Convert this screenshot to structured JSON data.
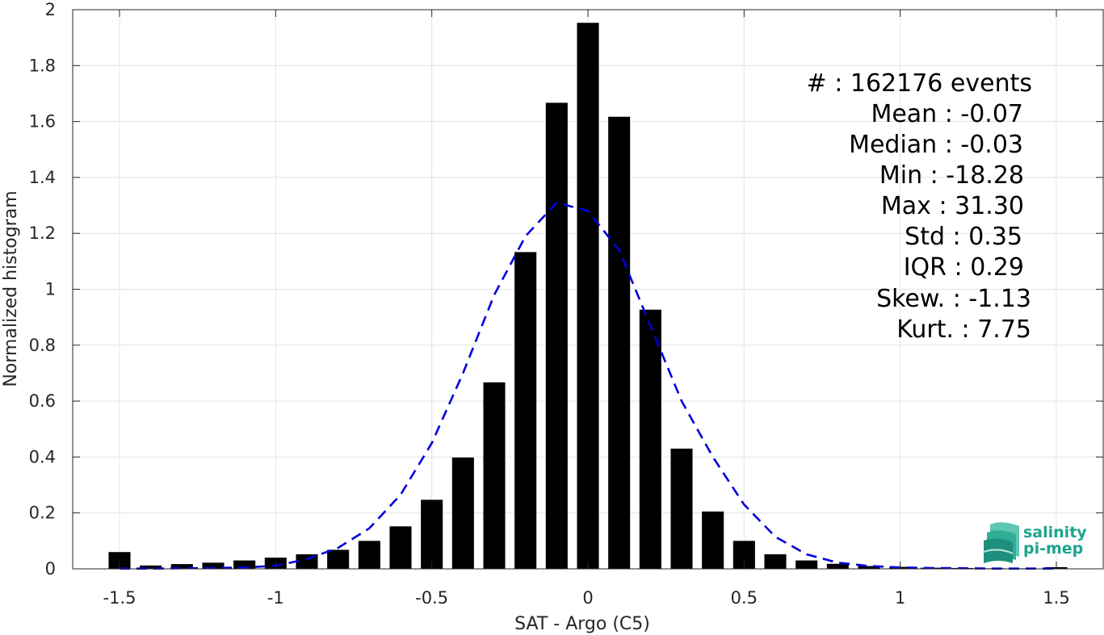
{
  "chart_data": {
    "type": "bar",
    "xlabel": "SAT - Argo (C5)",
    "ylabel": "Normalized histogram",
    "xlim": [
      -1.65,
      1.65
    ],
    "ylim": [
      0,
      2
    ],
    "xticks": [
      -1.5,
      -1,
      -0.5,
      0,
      0.5,
      1,
      1.5
    ],
    "xtick_labels": [
      "-1.5",
      "-1",
      "-0.5",
      "0",
      "0.5",
      "1",
      "1.5"
    ],
    "yticks": [
      0,
      0.2,
      0.4,
      0.6,
      0.8,
      1,
      1.2,
      1.4,
      1.6,
      1.8,
      2
    ],
    "ytick_labels": [
      "0",
      "0.2",
      "0.4",
      "0.6",
      "0.8",
      "1",
      "1.2",
      "1.4",
      "1.6",
      "1.8",
      "2"
    ],
    "grid": true,
    "bar_width": 0.07,
    "bars": {
      "x": [
        -1.5,
        -1.4,
        -1.3,
        -1.2,
        -1.1,
        -1.0,
        -0.9,
        -0.8,
        -0.7,
        -0.6,
        -0.5,
        -0.4,
        -0.3,
        -0.2,
        -0.1,
        0.0,
        0.1,
        0.2,
        0.3,
        0.4,
        0.5,
        0.6,
        0.7,
        0.8,
        0.9,
        1.0,
        1.1,
        1.2,
        1.3,
        1.4,
        1.5
      ],
      "values": [
        0.06,
        0.012,
        0.017,
        0.022,
        0.03,
        0.04,
        0.052,
        0.068,
        0.1,
        0.152,
        0.247,
        0.398,
        0.667,
        1.133,
        1.667,
        1.953,
        1.617,
        0.927,
        0.43,
        0.205,
        0.1,
        0.052,
        0.03,
        0.018,
        0.01,
        0.007,
        0.004,
        0.003,
        0.002,
        0.002,
        0.006
      ],
      "color": "#000000"
    },
    "fit_curve": {
      "style": "dashed",
      "color": "#0000dd",
      "x": [
        -1.5,
        -1.4,
        -1.3,
        -1.2,
        -1.1,
        -1.0,
        -0.9,
        -0.8,
        -0.7,
        -0.6,
        -0.5,
        -0.4,
        -0.3,
        -0.2,
        -0.1,
        0.0,
        0.1,
        0.2,
        0.3,
        0.4,
        0.5,
        0.6,
        0.7,
        0.8,
        0.9,
        1.0,
        1.1,
        1.2,
        1.3,
        1.4,
        1.5
      ],
      "y": [
        0.001,
        0.001,
        0.002,
        0.003,
        0.005,
        0.011,
        0.035,
        0.075,
        0.145,
        0.265,
        0.45,
        0.7,
        0.98,
        1.19,
        1.31,
        1.28,
        1.14,
        0.87,
        0.6,
        0.4,
        0.23,
        0.115,
        0.052,
        0.022,
        0.01,
        0.005,
        0.003,
        0.002,
        0.001,
        0.001,
        0.001
      ]
    },
    "stats": {
      "count_label": "#  : 162176 events",
      "mean_label": "Mean : -0.07",
      "median_label": "Median : -0.03",
      "min_label": "Min : -18.28",
      "max_label": "Max : 31.30",
      "std_label": "Std : 0.35",
      "iqr_label": "IQR : 0.29",
      "skew_label": "Skew. : -1.13",
      "kurt_label": "Kurt. : 7.75"
    },
    "logo": {
      "line1": "salinity",
      "line2": "pi-mep",
      "color": "#1aa58f"
    }
  }
}
